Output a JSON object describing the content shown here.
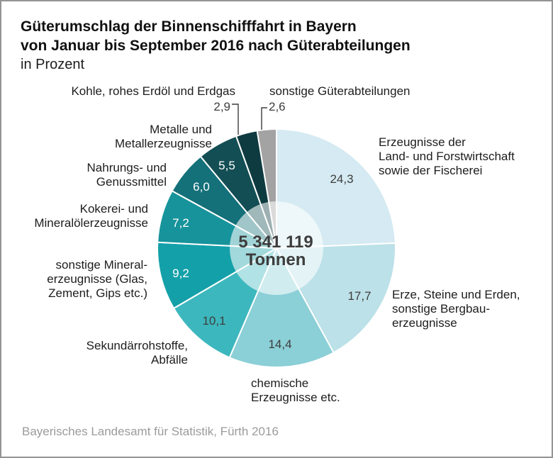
{
  "title": {
    "line1": "Güterumschlag der Binnenschifffahrt in Bayern",
    "line2": "von Januar bis September 2016 nach Güterabteilungen",
    "subtitle": "in Prozent"
  },
  "center_label": {
    "value": "5 341 119",
    "unit": "Tonnen"
  },
  "source": "Bayerisches Landesamt für Statistik, Fürth 2016",
  "colors": {
    "frame": "#949494",
    "leader_line": "#3d3d3d",
    "value_dark": "#3d3d3d",
    "value_light": "#ffffff",
    "source_text": "#9b9b9b"
  },
  "chart_data": {
    "type": "pie",
    "title": "Güterumschlag der Binnenschifffahrt in Bayern von Januar bis September 2016 nach Güterabteilungen",
    "unit": "Prozent",
    "center_total": "5 341 119 Tonnen",
    "start_angle_deg": 0,
    "direction": "clockwise",
    "legend_position": "around",
    "slices": [
      {
        "label": "Erzeugnisse der Land- und Forstwirtschaft sowie der Fischerei",
        "value": 24.3,
        "display": "24,3",
        "color": "#d5eaf2",
        "value_color": "#3d3d3d"
      },
      {
        "label": "Erze, Steine und Erden, sonstige Bergbauerzeugnisse",
        "value": 17.7,
        "display": "17,7",
        "color": "#bce1e8",
        "value_color": "#3d3d3d"
      },
      {
        "label": "chemische Erzeugnisse etc.",
        "value": 14.4,
        "display": "14,4",
        "color": "#8bcfd7",
        "value_color": "#3d3d3d"
      },
      {
        "label": "Sekundärrohstoffe, Abfälle",
        "value": 10.1,
        "display": "10,1",
        "color": "#3db7be",
        "value_color": "#3d3d3d"
      },
      {
        "label": "sonstige Mineralerzeugnisse (Glas, Zement, Gips etc.)",
        "value": 9.2,
        "display": "9,2",
        "color": "#14a0a9",
        "value_color": "#ffffff"
      },
      {
        "label": "Kokerei- und Mineralölerzeugnisse",
        "value": 7.2,
        "display": "7,2",
        "color": "#17939b",
        "value_color": "#ffffff"
      },
      {
        "label": "Nahrungs- und Genussmittel",
        "value": 6.0,
        "display": "6,0",
        "color": "#147079",
        "value_color": "#ffffff"
      },
      {
        "label": "Metalle und Metallerzeugnisse",
        "value": 5.5,
        "display": "5,5",
        "color": "#134e54",
        "value_color": "#ffffff"
      },
      {
        "label": "Kohle, rohes Erdöl und Erdgas",
        "value": 2.9,
        "display": "2,9",
        "color": "#0e3b40",
        "value_color": "#3d3d3d"
      },
      {
        "label": "sonstige Güterabteilungen",
        "value": 2.6,
        "display": "2,6",
        "color": "#a3a3a3",
        "value_color": "#3d3d3d"
      }
    ]
  },
  "annotations": {
    "coal": "Kohle, rohes Erdöl und Erdgas",
    "other": "sonstige Güterabteilungen",
    "metals": "Metalle und\nMetallerzeugnisse",
    "food": "Nahrungs- und\nGenussmittel",
    "coke": "Kokerei- und\nMineralölerzeugnisse",
    "mineral": "sonstige Mineral-\nerzeugnisse (Glas,\nZement, Gips etc.)",
    "secondary": "Sekundärrohstoffe,\nAbfälle",
    "agriculture": "Erzeugnisse der\nLand- und Forstwirtschaft\nsowie der Fischerei",
    "ores": "Erze, Steine und Erden,\nsonstige Bergbau-\nerzeugnisse",
    "chemical": "chemische\nErzeugnisse etc."
  }
}
